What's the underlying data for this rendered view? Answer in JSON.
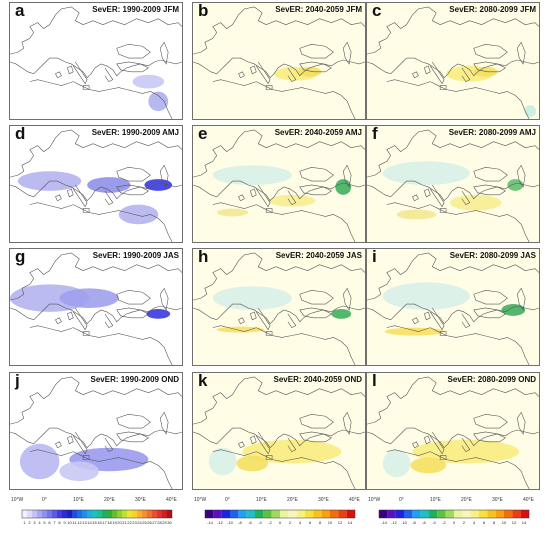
{
  "panels": [
    {
      "label": "a",
      "title": "SevER: 1990-2009 JFM",
      "type": "base"
    },
    {
      "label": "b",
      "title": "SevER: 2040-2059 JFM",
      "type": "anom"
    },
    {
      "label": "c",
      "title": "SevER: 2080-2099 JFM",
      "type": "anom"
    },
    {
      "label": "d",
      "title": "SevER: 1990-2009 AMJ",
      "type": "base"
    },
    {
      "label": "e",
      "title": "SevER: 2040-2059 AMJ",
      "type": "anom"
    },
    {
      "label": "f",
      "title": "SevER: 2080-2099 AMJ",
      "type": "anom"
    },
    {
      "label": "g",
      "title": "SevER: 1990-2009 JAS",
      "type": "base"
    },
    {
      "label": "h",
      "title": "SevER: 2040-2059 JAS",
      "type": "anom"
    },
    {
      "label": "i",
      "title": "SevER: 2080-2099 JAS",
      "type": "anom"
    },
    {
      "label": "j",
      "title": "SevER: 1990-2009 OND",
      "type": "base"
    },
    {
      "label": "k",
      "title": "SevER: 2040-2059 OND",
      "type": "anom"
    },
    {
      "label": "l",
      "title": "SevER: 2080-2099 OND",
      "type": "anom"
    }
  ],
  "x_ticks": [
    "10°W",
    "0°",
    "10°E",
    "20°E",
    "30°E",
    "40°E"
  ],
  "colorbar_baseline": {
    "labels": [
      "1",
      "2",
      "3",
      "4",
      "5",
      "6",
      "7",
      "8",
      "9",
      "10",
      "11",
      "12",
      "13",
      "14",
      "15",
      "16",
      "17",
      "18",
      "19",
      "20",
      "21",
      "22",
      "23",
      "24",
      "25",
      "26",
      "27",
      "28",
      "29",
      "30"
    ],
    "colors": [
      "#f2f2ff",
      "#dcdcfb",
      "#c3c3f7",
      "#a9a9f2",
      "#8f8fee",
      "#7575ea",
      "#5b5be6",
      "#3f3fe0",
      "#2a2ad6",
      "#1f1fc0",
      "#1f4fd8",
      "#1f6fe8",
      "#1f8fe8",
      "#1fafd8",
      "#1fc0c0",
      "#1fc090",
      "#1fb060",
      "#30b030",
      "#60c030",
      "#90d030",
      "#c0e030",
      "#e8e830",
      "#f8d030",
      "#f8b030",
      "#f89030",
      "#f07030",
      "#e85030",
      "#e03030",
      "#d01f1f",
      "#b01010"
    ]
  },
  "colorbar_anomaly": {
    "labels": [
      "-14",
      "-12",
      "-10",
      "-8",
      "-6",
      "-4",
      "-2",
      "0",
      "2",
      "4",
      "6",
      "8",
      "10",
      "12",
      "14"
    ],
    "colors": [
      "#3a0080",
      "#5a10c0",
      "#2020e0",
      "#2060f0",
      "#20a0f0",
      "#20c0c0",
      "#20b060",
      "#60c040",
      "#a0d860",
      "#e8f4a0",
      "#f8f4c0",
      "#f8f080",
      "#f8e040",
      "#f8c020",
      "#f8a010",
      "#f07010",
      "#e84010",
      "#d81010"
    ]
  }
}
